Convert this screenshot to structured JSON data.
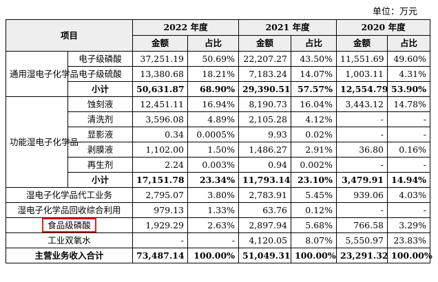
{
  "unit_label": "单位：万元",
  "header": {
    "item": "项目",
    "years": [
      "2022 年度",
      "2021 年度",
      "2020 年度"
    ],
    "amount": "金额",
    "ratio": "占比"
  },
  "groups": {
    "general": "通用湿电子化学品",
    "functional": "功能湿电子化学品"
  },
  "rows": [
    {
      "label": "电子级磷酸",
      "v": [
        "37,251.19",
        "50.69%",
        "22,207.27",
        "43.50%",
        "11,551.69",
        "49.60%"
      ]
    },
    {
      "label": "电子级硫酸",
      "v": [
        "13,380.68",
        "18.21%",
        "7,183.24",
        "14.07%",
        "1,003.11",
        "4.31%"
      ]
    },
    {
      "label": "小计",
      "v": [
        "50,631.87",
        "68.90%",
        "29,390.51",
        "57.57%",
        "12,554.79",
        "53.90%"
      ]
    },
    {
      "label": "蚀刻液",
      "v": [
        "12,451.11",
        "16.94%",
        "8,190.73",
        "16.04%",
        "3,443.12",
        "14.78%"
      ]
    },
    {
      "label": "清洗剂",
      "v": [
        "3,596.08",
        "4.89%",
        "2,105.28",
        "4.12%",
        "-",
        "-"
      ]
    },
    {
      "label": "显影液",
      "v": [
        "0.34",
        "0.0005%",
        "9.93",
        "0.02%",
        "-",
        "-"
      ]
    },
    {
      "label": "剥膜液",
      "v": [
        "1,102.00",
        "1.50%",
        "1,486.27",
        "2.91%",
        "36.80",
        "0.16%"
      ]
    },
    {
      "label": "再生剂",
      "v": [
        "2.24",
        "0.003%",
        "0.94",
        "0.002%",
        "-",
        "-"
      ]
    },
    {
      "label": "小计",
      "v": [
        "17,151.78",
        "23.34%",
        "11,793.14",
        "23.10%",
        "3,479.91",
        "14.94%"
      ]
    },
    {
      "label": "湿电子化学品代工业务",
      "v": [
        "2,795.07",
        "3.80%",
        "2,783.91",
        "5.45%",
        "939.06",
        "4.03%"
      ]
    },
    {
      "label": "湿电子化学品回收综合利用",
      "v": [
        "979.13",
        "1.33%",
        "63.76",
        "0.12%",
        "-",
        "-"
      ]
    },
    {
      "label": "食品级磷酸",
      "v": [
        "1,929.29",
        "2.63%",
        "2,897.94",
        "5.68%",
        "766.58",
        "3.29%"
      ]
    },
    {
      "label": "工业双氧水",
      "v": [
        "-",
        "-",
        "4,120.05",
        "8.07%",
        "5,550.97",
        "23.83%"
      ]
    },
    {
      "label": "主营业务收入合计",
      "v": [
        "73,487.14",
        "100.00%",
        "51,049.31",
        "100.00%",
        "23,291.32",
        "100.00%"
      ]
    }
  ]
}
